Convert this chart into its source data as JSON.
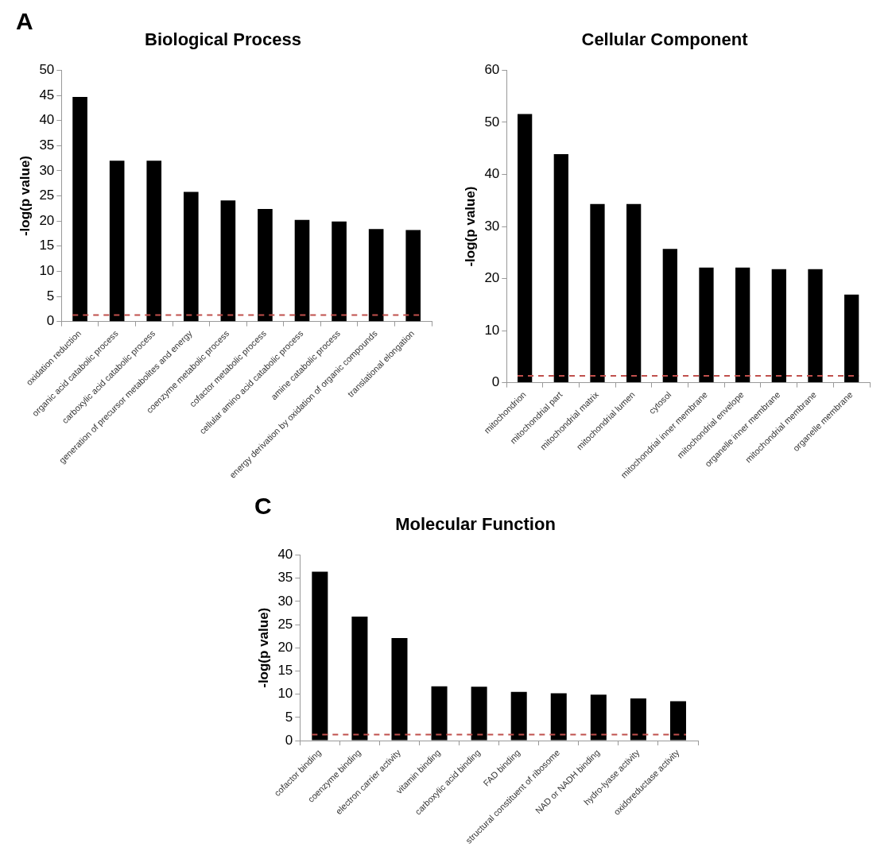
{
  "chart_data": [
    {
      "type": "bar",
      "title": "Biological Process",
      "ylabel": "-log(p value)",
      "annotations": [
        "A"
      ],
      "categories": [
        "oxidation reduction",
        "organic acid catabolic process",
        "carboxylic acid catabolic process",
        "generation of precursor metabolites and energy",
        "coenzyme metabolic process",
        "cofactor metabolic process",
        "cellular amino acid catabolic process",
        "amine catabolic process",
        "energy derivation by oxidation of organic compounds",
        "translational elongation"
      ],
      "values": [
        44.7,
        32,
        32,
        25.8,
        24.1,
        22.4,
        20.2,
        19.9,
        18.4,
        18.2
      ],
      "color": "#000000",
      "ylim": [
        0,
        50
      ],
      "yticks": [
        0,
        5,
        10,
        15,
        20,
        25,
        30,
        35,
        40,
        45,
        50
      ],
      "grid": false,
      "ref_lines": [
        {
          "axis": "y",
          "value": 1.3,
          "color": "#c0504d",
          "line_style": "dashed"
        }
      ]
    },
    {
      "type": "bar",
      "title": "Cellular Component",
      "ylabel": "-log(p value)",
      "categories": [
        "mitochondrion",
        "mitochondrial part",
        "mitochondrial matrix",
        "mitochondrial lumen",
        "cytosol",
        "mitochondrial inner membrane",
        "mitochondrial envelope",
        "organelle inner membrane",
        "mitochondrial membrane",
        "organelle membrane"
      ],
      "values": [
        51.6,
        43.9,
        34.3,
        34.3,
        25.7,
        22.1,
        22.1,
        21.8,
        21.8,
        16.9
      ],
      "color": "#000000",
      "ylim": [
        0,
        60
      ],
      "yticks": [
        0,
        10,
        20,
        30,
        40,
        50,
        60
      ],
      "grid": false,
      "ref_lines": [
        {
          "axis": "y",
          "value": 1.3,
          "color": "#c0504d",
          "line_style": "dashed"
        }
      ]
    },
    {
      "type": "bar",
      "title": "Molecular Function",
      "ylabel": "-log(p value)",
      "annotations": [
        "C"
      ],
      "categories": [
        "cofactor binding",
        "coenzyme binding",
        "electron carrier activity",
        "vitamin binding",
        "carboxylic acid binding",
        "FAD binding",
        "structural constituent of ribosome",
        "NAD or NADH binding",
        "hydro-lyase activity",
        "oxidoreductase activity"
      ],
      "values": [
        36.4,
        26.7,
        22.1,
        11.7,
        11.6,
        10.5,
        10.2,
        9.9,
        9.1,
        8.5
      ],
      "color": "#000000",
      "ylim": [
        0,
        40
      ],
      "yticks": [
        0,
        5,
        10,
        15,
        20,
        25,
        30,
        35,
        40
      ],
      "grid": false,
      "ref_lines": [
        {
          "axis": "y",
          "value": 1.3,
          "color": "#c0504d",
          "line_style": "dashed"
        }
      ]
    }
  ]
}
